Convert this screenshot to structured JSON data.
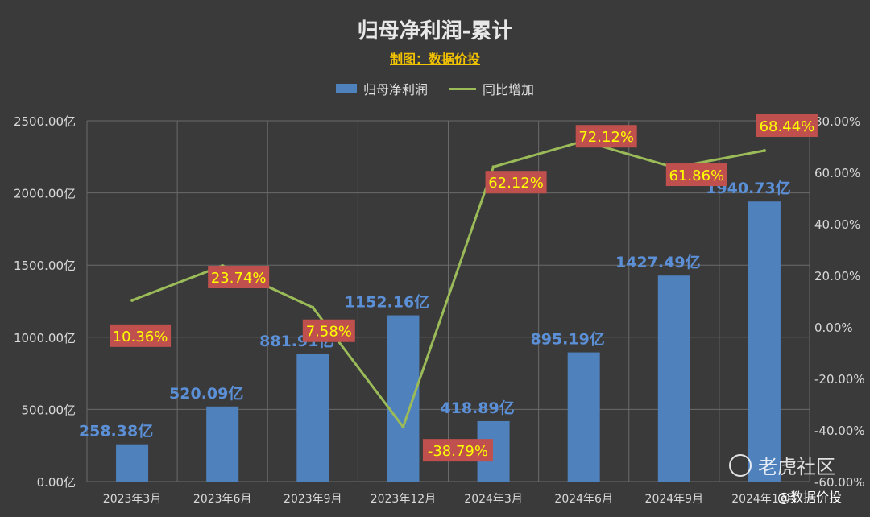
{
  "chart_data": {
    "type": "bar",
    "title": "归母净利润-累计",
    "subtitle": "制图：数据价投",
    "categories": [
      "2023年3月",
      "2023年6月",
      "2023年9月",
      "2023年12月",
      "2024年3月",
      "2024年6月",
      "2024年9月",
      "2024年12月"
    ],
    "series": [
      {
        "name": "归母净利润",
        "type": "bar",
        "axis": "left",
        "color": "#4f81bd",
        "values": [
          258.38,
          520.09,
          881.91,
          1152.16,
          418.89,
          895.19,
          1427.49,
          1940.73
        ],
        "labels": [
          "258.38亿",
          "520.09亿",
          "881.91亿",
          "1152.16亿",
          "418.89亿",
          "895.19亿",
          "1427.49亿",
          "1940.73亿"
        ]
      },
      {
        "name": "同比增加",
        "type": "line",
        "axis": "right",
        "color": "#9bbb59",
        "values": [
          10.36,
          23.74,
          7.58,
          -38.79,
          62.12,
          72.12,
          61.86,
          68.44
        ],
        "labels": [
          "10.36%",
          "23.74%",
          "7.58%",
          "-38.79%",
          "62.12%",
          "72.12%",
          "61.86%",
          "68.44%"
        ]
      }
    ],
    "y_left": {
      "ylim": [
        0,
        2500
      ],
      "ticks": [
        0,
        500,
        1000,
        1500,
        2000,
        2500
      ],
      "tick_labels": [
        "0.00亿",
        "500.00亿",
        "1000.00亿",
        "1500.00亿",
        "2000.00亿",
        "2500.00亿"
      ]
    },
    "y_right": {
      "ylim": [
        -60,
        80
      ],
      "ticks": [
        -60,
        -40,
        -20,
        0,
        20,
        40,
        60,
        80
      ],
      "tick_labels": [
        "-60.00%",
        "-40.00%",
        "-20.00%",
        "0.00%",
        "20.00%",
        "40.00%",
        "60.00%",
        "80.00%"
      ]
    },
    "grid": true,
    "legend_position": "top-center"
  },
  "watermark": {
    "brand": "老虎社区",
    "handle": "@数据价投"
  },
  "colors": {
    "background": "#3a3a3a",
    "bar": "#4f81bd",
    "line": "#9bbb59",
    "pct_label_bg": "#c0504d",
    "pct_label_text": "#ffff00",
    "bar_label_text": "#5b8fd6",
    "axis_text": "#d8d8d8",
    "grid": "#6a6a6a"
  }
}
